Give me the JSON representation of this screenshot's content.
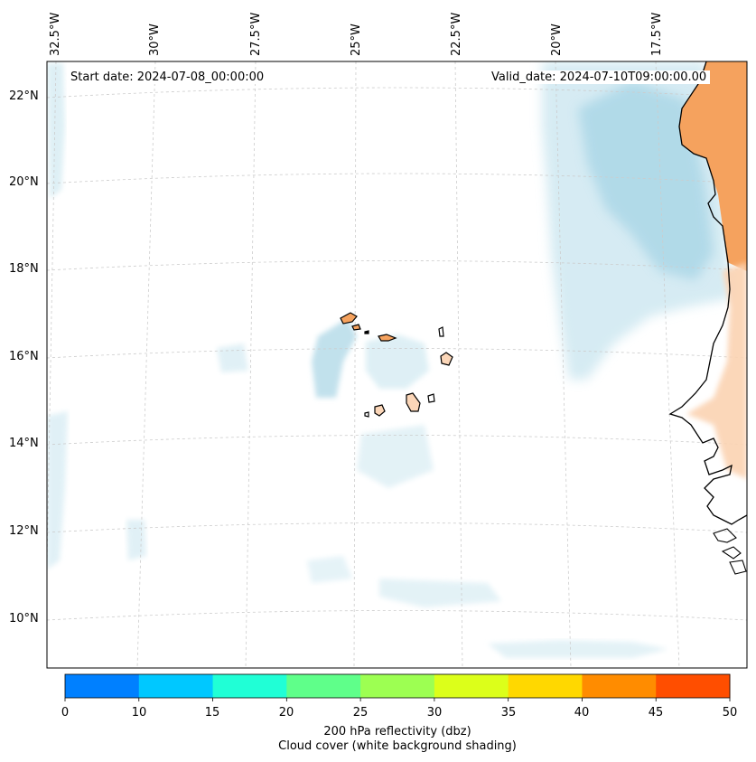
{
  "map": {
    "start_date": "Start date: 2024-07-08_00:00:00",
    "valid_date": "Valid_date: 2024-07-10T09:00:00.00",
    "longitude_labels": [
      "32.5°W",
      "30°W",
      "27.5°W",
      "25°W",
      "22.5°W",
      "20°W",
      "17.5°W"
    ],
    "latitude_labels": [
      "22°N",
      "20°N",
      "18°N",
      "16°N",
      "14°N",
      "12°N",
      "10°N"
    ],
    "region": "Cabo Verde islands and West African coast"
  },
  "colorbar": {
    "ticks": [
      "0",
      "10",
      "15",
      "20",
      "25",
      "30",
      "35",
      "40",
      "45",
      "50"
    ],
    "colors": [
      "#0080ff",
      "#00c8ff",
      "#20ffd6",
      "#5fff8a",
      "#9dff52",
      "#dcff1a",
      "#ffd800",
      "#ff8c00",
      "#ff4e00"
    ],
    "label_line1": "200 hPa reflectivity (dbz)",
    "label_line2": "Cloud cover (white background shading)"
  },
  "colors": {
    "cloud_light": "#dff0f6",
    "cloud_mid": "#bfe1ec",
    "land_orange": "#f5a25e",
    "land_peach": "#fbd6b8",
    "grid": "#cccccc"
  }
}
